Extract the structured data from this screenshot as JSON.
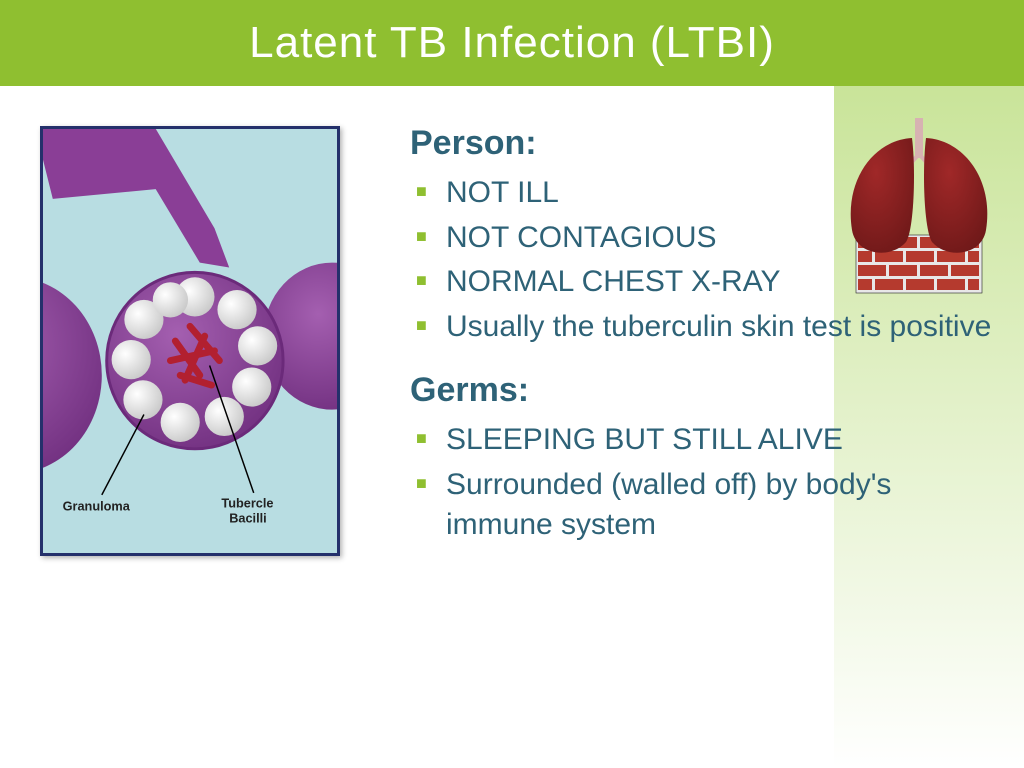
{
  "colors": {
    "title_bg": "#8fbf30",
    "title_text": "#ffffff",
    "side_grad_top": "#c9e499",
    "side_grad_bottom": "#ffffff",
    "section_head": "#2e6277",
    "bullet_text": "#2e6277",
    "bullet_marker": "#8fbf30",
    "diagram_bg": "#b8dde2",
    "diagram_border": "#24306b",
    "bronchiole": "#8a3e96",
    "alveolus_outline": "#6b2a7a",
    "alveolus_fill": "#a45fb0",
    "white_cell": "#f2f2f2",
    "white_cell_shadow": "#c9c9c9",
    "bacilli": "#b22030",
    "lung_dark": "#6d1818",
    "lung_light": "#a02828",
    "brick": "#b53a2e",
    "mortar": "#e8e8e8"
  },
  "title": "Latent TB Infection (LTBI)",
  "sections": [
    {
      "heading": "Person:",
      "items": [
        "Not ill",
        "Not contagious",
        "Normal chest x-ray",
        "Usually the tuberculin skin test is positive"
      ]
    },
    {
      "heading": "Germs:",
      "items": [
        "Sleeping but still alive",
        "Surrounded (walled off) by body's immune system"
      ]
    }
  ],
  "diagram_labels": {
    "left": "Granuloma",
    "right": "Tubercle Bacilli"
  },
  "typography": {
    "title_fontsize": 44,
    "section_head_fontsize": 34,
    "bullet_fontsize": 30,
    "diagram_label_fontsize": 13
  }
}
